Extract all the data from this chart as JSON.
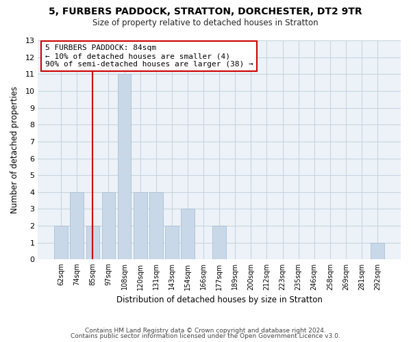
{
  "title": "5, FURBERS PADDOCK, STRATTON, DORCHESTER, DT2 9TR",
  "subtitle": "Size of property relative to detached houses in Stratton",
  "xlabel": "Distribution of detached houses by size in Stratton",
  "ylabel": "Number of detached properties",
  "bin_labels": [
    "62sqm",
    "74sqm",
    "85sqm",
    "97sqm",
    "108sqm",
    "120sqm",
    "131sqm",
    "143sqm",
    "154sqm",
    "166sqm",
    "177sqm",
    "189sqm",
    "200sqm",
    "212sqm",
    "223sqm",
    "235sqm",
    "246sqm",
    "258sqm",
    "269sqm",
    "281sqm",
    "292sqm"
  ],
  "bar_heights": [
    2,
    4,
    2,
    4,
    11,
    4,
    4,
    2,
    3,
    0,
    2,
    0,
    0,
    0,
    0,
    0,
    0,
    0,
    0,
    0,
    1
  ],
  "bar_color": "#c8d8e8",
  "bar_edgecolor": "#aac0d4",
  "vline_x_index": 2,
  "vline_color": "#cc0000",
  "annotation_line1": "5 FURBERS PADDOCK: 84sqm",
  "annotation_line2": "← 10% of detached houses are smaller (4)",
  "annotation_line3": "90% of semi-detached houses are larger (38) →",
  "annotation_box_color": "#ffffff",
  "annotation_box_edgecolor": "#cc0000",
  "ylim": [
    0,
    13
  ],
  "yticks": [
    0,
    1,
    2,
    3,
    4,
    5,
    6,
    7,
    8,
    9,
    10,
    11,
    12,
    13
  ],
  "footer_line1": "Contains HM Land Registry data © Crown copyright and database right 2024.",
  "footer_line2": "Contains public sector information licensed under the Open Government Licence v3.0.",
  "bg_color": "#ffffff",
  "plot_bg_color": "#edf2f8",
  "grid_color": "#c8d4e0"
}
